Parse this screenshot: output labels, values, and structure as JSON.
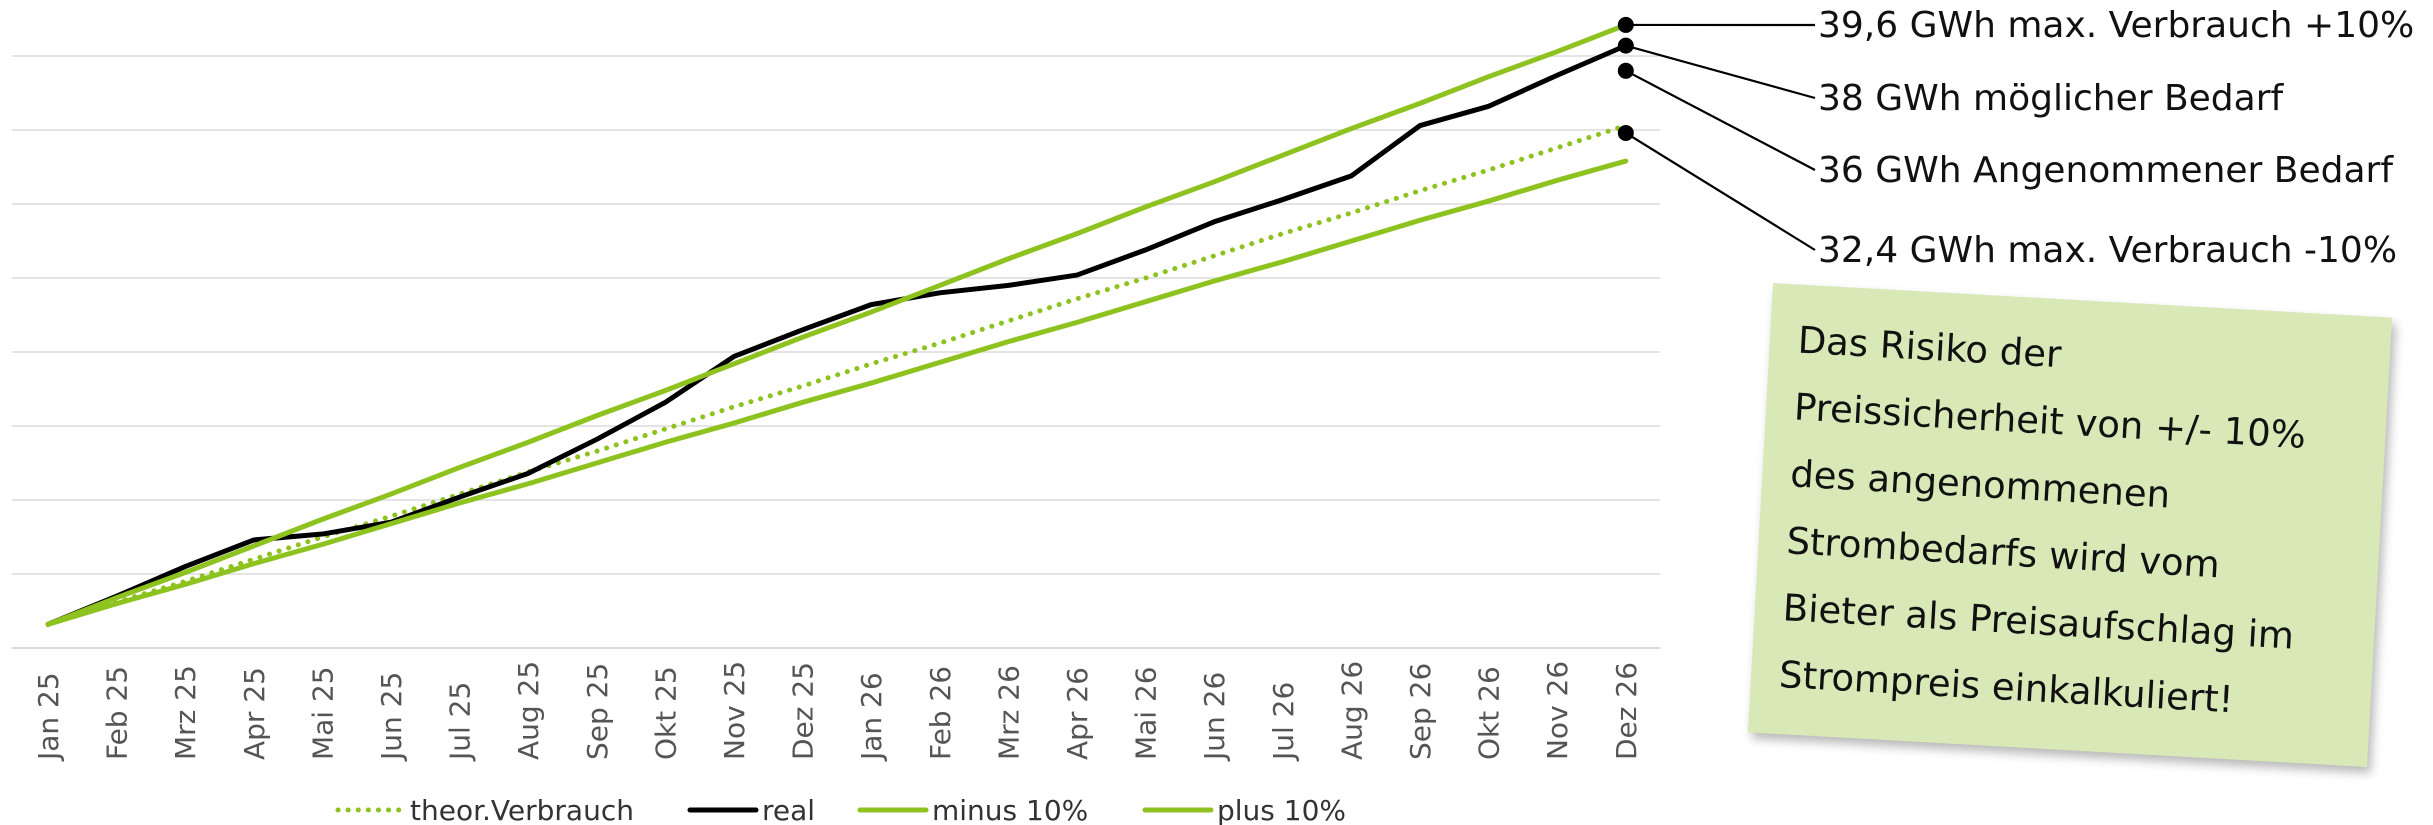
{
  "chart_data": {
    "type": "line",
    "categories": [
      "Jan 25",
      "Feb 25",
      "Mrz 25",
      "Apr 25",
      "Mai 25",
      "Jun 25",
      "Jul 25",
      "Aug 25",
      "Sep 25",
      "Okt 25",
      "Nov 25",
      "Dez 25",
      "Jan 26",
      "Feb 26",
      "Mrz 26",
      "Apr 26",
      "Mai 26",
      "Jun 26",
      "Jul 26",
      "Aug 26",
      "Sep 26",
      "Okt 26",
      "Nov 26",
      "Dez 26"
    ],
    "ylim": [
      0,
      40
    ],
    "grid": true,
    "legend_position": "bottom",
    "series": [
      {
        "name": "theor.Verbrauch",
        "style": "dotted",
        "color": "#8dc21f",
        "values": [
          1.6,
          3.1,
          4.5,
          6.0,
          7.5,
          8.9,
          10.4,
          11.9,
          13.3,
          14.8,
          16.3,
          17.7,
          19.2,
          20.6,
          22.1,
          23.6,
          25.0,
          26.5,
          28.0,
          29.4,
          30.9,
          32.3,
          33.8,
          35.3
        ]
      },
      {
        "name": "real",
        "style": "solid",
        "color": "#000000",
        "values": [
          1.6,
          3.5,
          5.5,
          7.3,
          7.7,
          8.5,
          10.2,
          11.8,
          14.1,
          16.6,
          19.7,
          21.5,
          23.2,
          24.0,
          24.5,
          25.2,
          26.9,
          28.8,
          30.3,
          31.9,
          35.3,
          36.6,
          38.7,
          40.7
        ]
      },
      {
        "name": "minus 10%",
        "style": "solid",
        "color": "#8dc21f",
        "values": [
          1.6,
          3.0,
          4.3,
          5.7,
          7.0,
          8.4,
          9.8,
          11.1,
          12.5,
          13.9,
          15.2,
          16.6,
          17.9,
          19.3,
          20.7,
          22.0,
          23.4,
          24.8,
          26.1,
          27.5,
          28.9,
          30.2,
          31.6,
          32.9
        ]
      },
      {
        "name": "plus 10%",
        "style": "solid",
        "color": "#8dc21f",
        "values": [
          1.6,
          3.4,
          5.1,
          6.9,
          8.7,
          10.4,
          12.2,
          13.9,
          15.7,
          17.4,
          19.2,
          21.0,
          22.7,
          24.5,
          26.3,
          28.0,
          29.8,
          31.5,
          33.3,
          35.1,
          36.8,
          38.6,
          40.3,
          42.1
        ]
      }
    ],
    "annotations": [
      {
        "text": "39,6 GWh max. Verbrauch +10%",
        "value": 42.1
      },
      {
        "text": "38 GWh möglicher Bedarf",
        "value": 40.7
      },
      {
        "text": "36 GWh Angenommener Bedarf",
        "value": 39.0
      },
      {
        "text": "32,4 GWh max. Verbrauch -10%",
        "value": 34.8
      }
    ]
  },
  "note": {
    "lines": [
      "Das Risiko der",
      "Preissicherheit von +/- 10%",
      "des angenommenen",
      "Strombedarfs  wird vom",
      "Bieter als Preisaufschlag im",
      "Strompreis einkalkuliert!"
    ]
  }
}
